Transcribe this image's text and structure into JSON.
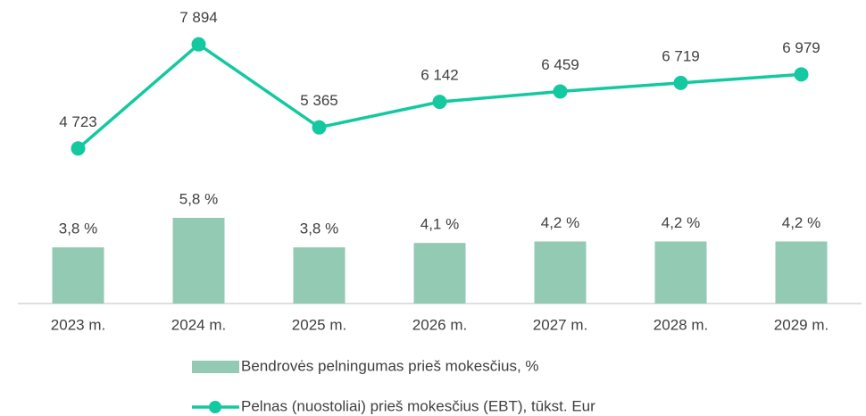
{
  "chart_data": {
    "type": "bar_line",
    "categories": [
      "2023 m.",
      "2024 m.",
      "2025 m.",
      "2026 m.",
      "2027 m.",
      "2028 m.",
      "2029 m."
    ],
    "series": [
      {
        "name": "Bendrovės pelningumas prieš mokesčius, %",
        "type": "bar",
        "color": "#93cab3",
        "values": [
          3.8,
          5.8,
          3.8,
          4.1,
          4.2,
          4.2,
          4.2
        ],
        "value_labels": [
          "3,8 %",
          "5,8 %",
          "3,8 %",
          "4,1 %",
          "4,2 %",
          "4,2 %",
          "4,2 %"
        ]
      },
      {
        "name": "Pelnas (nuostoliai) prieš mokesčius (EBT), tūkst. Eur",
        "type": "line",
        "axis": "y2",
        "color": "#14c8a0",
        "values": [
          4723,
          7894,
          5365,
          6142,
          6459,
          6719,
          6979
        ],
        "value_labels": [
          "4 723",
          "7 894",
          "5 365",
          "6 142",
          "6 459",
          "6 719",
          "6 979"
        ]
      }
    ],
    "ylim": [
      0,
      20
    ],
    "y2lim": [
      0,
      9000
    ],
    "grid": false,
    "legend": "bottom"
  }
}
